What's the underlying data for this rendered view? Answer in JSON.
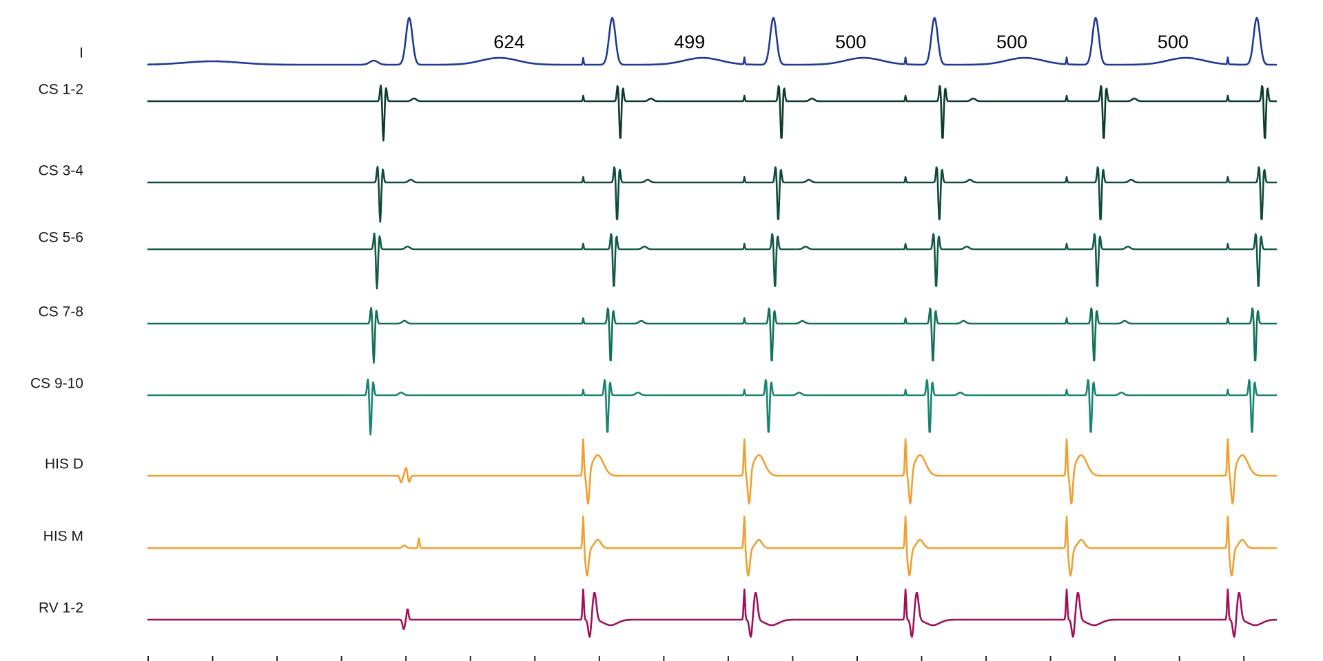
{
  "chart_data": {
    "type": "line",
    "title": "",
    "xlabel": "",
    "ylabel": "",
    "grid": false,
    "legend": "none",
    "x_unit": "ms",
    "x_range": [
      0,
      3500
    ],
    "x_tick_step": 200,
    "pacing_spike_times_ms": [
      1350,
      1850,
      2350,
      2850,
      3350
    ],
    "intervals": [
      {
        "label": "624",
        "x": 1120
      },
      {
        "label": "499",
        "x": 1680
      },
      {
        "label": "500",
        "x": 2180
      },
      {
        "label": "500",
        "x": 2680
      },
      {
        "label": "500",
        "x": 3180
      }
    ],
    "series": [
      {
        "name": "I",
        "color": "#1f3a93",
        "kind": "surface",
        "qrs_times_ms": [
          810,
          1440,
          1940,
          2440,
          2940,
          3440
        ]
      },
      {
        "name": "CS 1-2",
        "color": "#0d3b2e",
        "kind": "cs",
        "qrs_times_ms": [
          730,
          1465,
          1965,
          2465,
          2965,
          3465
        ]
      },
      {
        "name": "CS 3-4",
        "color": "#0f4a3a",
        "kind": "cs",
        "qrs_times_ms": [
          720,
          1455,
          1955,
          2455,
          2955,
          3455
        ]
      },
      {
        "name": "CS 5-6",
        "color": "#125a47",
        "kind": "cs",
        "qrs_times_ms": [
          710,
          1445,
          1945,
          2445,
          2945,
          3445
        ]
      },
      {
        "name": "CS 7-8",
        "color": "#147058",
        "kind": "cs",
        "qrs_times_ms": [
          700,
          1435,
          1935,
          2435,
          2935,
          3435
        ]
      },
      {
        "name": "CS 9-10",
        "color": "#178571",
        "kind": "cs",
        "qrs_times_ms": [
          690,
          1425,
          1925,
          2425,
          2925,
          3425
        ]
      },
      {
        "name": "HIS D",
        "color": "#f0a030",
        "kind": "his_d",
        "qrs_times_ms": [
          800,
          1350,
          1850,
          2350,
          2850,
          3350
        ]
      },
      {
        "name": "HIS M",
        "color": "#f0a030",
        "kind": "his_m",
        "qrs_times_ms": [
          840,
          1350,
          1850,
          2350,
          2850,
          3350
        ]
      },
      {
        "name": "RV 1-2",
        "color": "#a0105a",
        "kind": "rv",
        "qrs_times_ms": [
          805,
          1350,
          1850,
          2350,
          2850,
          3350
        ]
      }
    ]
  }
}
